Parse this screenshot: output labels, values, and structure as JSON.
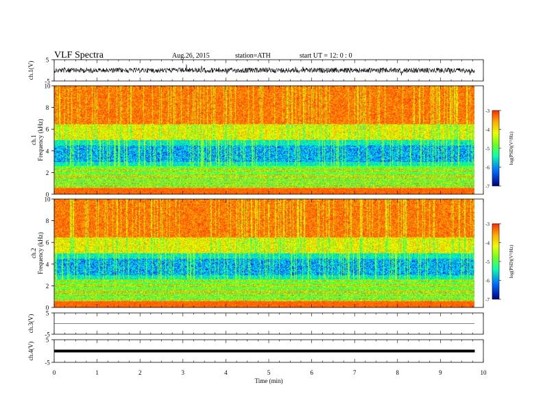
{
  "header": {
    "title": "VLF  Spectra",
    "date": "Aug.26, 2015",
    "station": "station=ATH",
    "start": "start  UT  =     12: 0  : 0"
  },
  "chart_data": {
    "type": "heatmap",
    "xlabel": "Time  (min)",
    "xlim": [
      0,
      10
    ],
    "xticks": [
      "0",
      "1",
      "2",
      "3",
      "4",
      "5",
      "6",
      "7",
      "8",
      "9",
      "10"
    ],
    "data_end_min": 9.8,
    "panels": [
      {
        "kind": "waveform",
        "label": "ch.1(V)",
        "ylim": [
          -5,
          5
        ],
        "yticks": [
          "5",
          "-5"
        ],
        "noise_amp": 1.2
      },
      {
        "kind": "spectrogram",
        "label": "ch.1",
        "ylabel": "Frequency  (kHz)",
        "ylim": [
          0,
          10
        ],
        "yticks": [
          "0",
          "2",
          "4",
          "6",
          "8",
          "10"
        ],
        "colorbar": {
          "label": "log(PSD)(V²/Hz)",
          "range": [
            -7,
            -3
          ],
          "ticks": [
            "-3",
            "-4",
            "-5",
            "-6",
            "-7"
          ]
        }
      },
      {
        "kind": "spectrogram",
        "label": "ch.2",
        "ylabel": "Frequency  (kHz)",
        "ylim": [
          0,
          10
        ],
        "yticks": [
          "0",
          "2",
          "4",
          "6",
          "8",
          "10"
        ],
        "colorbar": {
          "label": "log(PSD)(V²/Hz)",
          "range": [
            -7,
            -3
          ],
          "ticks": [
            "-3",
            "-4",
            "-5",
            "-6",
            "-7"
          ]
        }
      },
      {
        "kind": "waveform",
        "label": "ch.3(V)",
        "ylim": [
          -5,
          5
        ],
        "yticks": [
          "5",
          "-5"
        ],
        "noise_amp": 0.05,
        "level": 0.0
      },
      {
        "kind": "waveform",
        "label": "ch.4(V)",
        "ylim": [
          -5,
          5
        ],
        "yticks": [
          "5",
          "-5"
        ],
        "noise_amp": 0.0,
        "level": 0.0,
        "thick": true
      }
    ],
    "colormap": [
      "#000080",
      "#0000ff",
      "#00b4ff",
      "#00ffc8",
      "#33ff33",
      "#c8ff00",
      "#ffff00",
      "#ff9600",
      "#ff2a00"
    ]
  }
}
